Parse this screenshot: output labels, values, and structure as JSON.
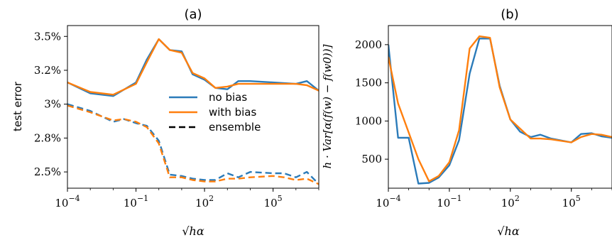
{
  "colors": {
    "no_bias": "#2b7bb9",
    "with_bias": "#ff7f0e",
    "ensemble_key": "#000000"
  },
  "chart_data": [
    {
      "type": "line",
      "panel_title": "(a)",
      "xlabel": "√hα",
      "ylabel": "test error",
      "xscale": "log",
      "xlim": [
        0.0001,
        10000000
      ],
      "xticks": [
        0.0001,
        0.1,
        100,
        100000
      ],
      "xtick_labels": [
        {
          "base": "10",
          "exp": "−4"
        },
        {
          "base": "10",
          "exp": "−1"
        },
        {
          "base": "10",
          "exp": "2"
        },
        {
          "base": "10",
          "exp": "5"
        }
      ],
      "ylim": [
        2.38,
        3.58
      ],
      "yticks": [
        2.5,
        2.75,
        3.0,
        3.25,
        3.5
      ],
      "ytick_labels": [
        "2.5%",
        "2.8%",
        "3%",
        "3.2%",
        "3.5%"
      ],
      "legend": {
        "position": "center-right",
        "entries": [
          {
            "label": "no bias",
            "color": "#2b7bb9",
            "dash": false
          },
          {
            "label": "with bias",
            "color": "#ff7f0e",
            "dash": false
          },
          {
            "label": "ensemble",
            "color": "#000000",
            "dash": true
          }
        ]
      },
      "series": [
        {
          "name": "no bias",
          "style": "solid",
          "color": "#2b7bb9",
          "x": [
            0.0001,
            0.001,
            0.01,
            0.1,
            0.3,
            1,
            3,
            10,
            30,
            100,
            300,
            1000,
            3000,
            10000,
            100000,
            1000000,
            3000000,
            10000000
          ],
          "y": [
            3.16,
            3.08,
            3.06,
            3.16,
            3.33,
            3.48,
            3.4,
            3.39,
            3.22,
            3.18,
            3.12,
            3.11,
            3.17,
            3.17,
            3.16,
            3.15,
            3.17,
            3.1
          ]
        },
        {
          "name": "with bias",
          "style": "solid",
          "color": "#ff7f0e",
          "x": [
            0.0001,
            0.001,
            0.01,
            0.1,
            0.3,
            1,
            3,
            10,
            30,
            100,
            300,
            1000,
            3000,
            10000,
            100000,
            1000000,
            3000000,
            10000000
          ],
          "y": [
            3.16,
            3.09,
            3.07,
            3.15,
            3.31,
            3.48,
            3.4,
            3.38,
            3.23,
            3.19,
            3.12,
            3.13,
            3.15,
            3.15,
            3.15,
            3.15,
            3.14,
            3.1
          ]
        },
        {
          "name": "no bias (ensemble)",
          "style": "dashed",
          "color": "#2b7bb9",
          "x": [
            0.0001,
            0.001,
            0.01,
            0.03,
            0.1,
            0.3,
            1,
            3,
            10,
            30,
            100,
            300,
            1000,
            3000,
            10000,
            100000,
            300000,
            1000000,
            3000000,
            10000000
          ],
          "y": [
            3.0,
            2.95,
            2.87,
            2.89,
            2.86,
            2.84,
            2.73,
            2.48,
            2.47,
            2.45,
            2.44,
            2.44,
            2.49,
            2.46,
            2.5,
            2.49,
            2.49,
            2.46,
            2.5,
            2.41
          ]
        },
        {
          "name": "with bias (ensemble)",
          "style": "dashed",
          "color": "#ff7f0e",
          "x": [
            0.0001,
            0.001,
            0.01,
            0.03,
            0.1,
            0.3,
            1,
            3,
            10,
            30,
            100,
            300,
            1000,
            3000,
            10000,
            100000,
            300000,
            1000000,
            3000000,
            10000000
          ],
          "y": [
            2.99,
            2.94,
            2.88,
            2.89,
            2.87,
            2.83,
            2.71,
            2.46,
            2.46,
            2.44,
            2.43,
            2.43,
            2.45,
            2.45,
            2.46,
            2.47,
            2.46,
            2.44,
            2.45,
            2.41
          ]
        }
      ]
    },
    {
      "type": "line",
      "panel_title": "(b)",
      "xlabel": "√hα",
      "ylabel": "h · Var[α(f(w) − f(w0))]",
      "xscale": "log",
      "xlim": [
        0.0001,
        10000000
      ],
      "xticks": [
        0.0001,
        0.1,
        100,
        100000
      ],
      "xtick_labels": [
        {
          "base": "10",
          "exp": "−4"
        },
        {
          "base": "10",
          "exp": "−1"
        },
        {
          "base": "10",
          "exp": "2"
        },
        {
          "base": "10",
          "exp": "5"
        }
      ],
      "ylim": [
        120,
        2250
      ],
      "yticks": [
        500,
        1000,
        1500,
        2000
      ],
      "ytick_labels": [
        "500",
        "1000",
        "1500",
        "2000"
      ],
      "series": [
        {
          "name": "no bias",
          "style": "solid",
          "color": "#2b7bb9",
          "x": [
            0.0001,
            0.0003,
            0.001,
            0.003,
            0.01,
            0.03,
            0.1,
            0.3,
            1,
            3,
            10,
            30,
            100,
            300,
            1000,
            3000,
            10000,
            100000,
            300000,
            1000000,
            3000000,
            10000000
          ],
          "y": [
            2000,
            780,
            780,
            180,
            190,
            260,
            420,
            750,
            1620,
            2080,
            2080,
            1460,
            1020,
            860,
            790,
            820,
            770,
            720,
            830,
            840,
            800,
            780
          ]
        },
        {
          "name": "with bias",
          "style": "solid",
          "color": "#ff7f0e",
          "x": [
            0.0001,
            0.0003,
            0.001,
            0.003,
            0.01,
            0.03,
            0.1,
            0.3,
            1,
            3,
            10,
            30,
            100,
            300,
            1000,
            3000,
            10000,
            100000,
            300000,
            1000000,
            3000000,
            10000000
          ],
          "y": [
            1840,
            1230,
            850,
            500,
            210,
            280,
            460,
            880,
            1950,
            2110,
            2090,
            1440,
            1020,
            900,
            770,
            770,
            760,
            720,
            790,
            830,
            820,
            790
          ]
        }
      ]
    }
  ]
}
